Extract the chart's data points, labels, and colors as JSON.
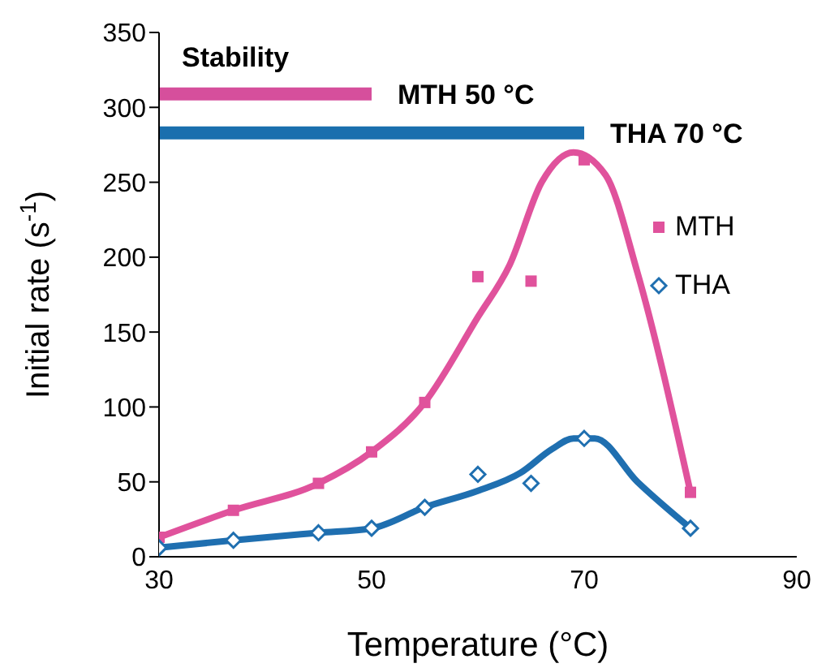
{
  "chart_data": {
    "type": "scatter",
    "xlabel": "Temperature (°C)",
    "ylabel": "Initial rate (s$^{-1}$)",
    "xlim": [
      30,
      90
    ],
    "xticks": [
      30,
      50,
      70,
      90
    ],
    "ylim": [
      0,
      350
    ],
    "yticks": [
      0,
      50,
      100,
      150,
      200,
      250,
      300,
      350
    ],
    "grid": false,
    "legend": "right",
    "annotations": [
      "Stability"
    ],
    "series": [
      {
        "name": "MTH",
        "marker": "square",
        "color": "#e0529c",
        "x": [
          30,
          37,
          45,
          50,
          55,
          60,
          65,
          70,
          80
        ],
        "values": [
          13,
          31,
          49,
          70,
          103,
          187,
          184,
          265,
          43
        ]
      },
      {
        "name": "THA",
        "marker": "diamond",
        "color": "#1f6fb0",
        "x": [
          30,
          37,
          45,
          50,
          55,
          60,
          65,
          70,
          80
        ],
        "values": [
          6,
          11,
          16,
          19,
          33,
          55,
          49,
          79,
          19
        ]
      },
      {
        "type": "line",
        "marker": "none",
        "color": "#e0529c",
        "x": [
          30,
          37,
          45,
          50,
          55,
          60,
          63,
          66,
          69,
          72,
          75,
          80
        ],
        "values": [
          13,
          31,
          49,
          70,
          103,
          160,
          195,
          250,
          270,
          255,
          190,
          43
        ]
      },
      {
        "type": "line",
        "marker": "none",
        "color": "#1f6fb0",
        "x": [
          30,
          37,
          45,
          50,
          55,
          60,
          64,
          67,
          69,
          71,
          75,
          80
        ],
        "values": [
          6,
          11,
          16,
          19,
          33,
          44,
          56,
          72,
          79,
          79,
          50,
          19
        ]
      },
      {
        "name": "MTH 50 °C",
        "type": "line",
        "marker": "none",
        "color": "#d64f9c",
        "x": [
          30,
          50
        ],
        "values": [
          309,
          309
        ]
      },
      {
        "name": "THA 70 °C",
        "type": "line",
        "marker": "none",
        "color": "#1a6fae",
        "x": [
          30,
          70
        ],
        "values": [
          283,
          283
        ]
      }
    ]
  }
}
